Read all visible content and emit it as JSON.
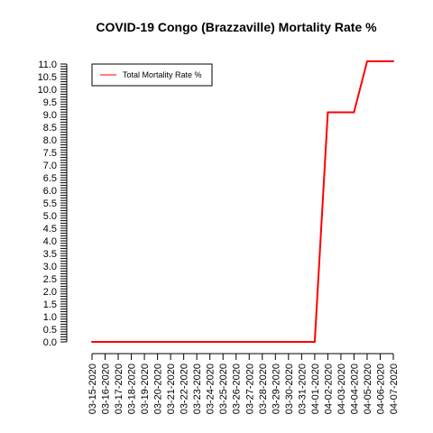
{
  "chart_data": {
    "type": "line",
    "title": "COVID-19 Congo (Brazzaville) Mortality Rate %",
    "xlabel": "",
    "ylabel": "",
    "ylim": [
      0,
      11
    ],
    "grid": false,
    "legend_position": "top-left",
    "x": [
      "03-15-2020",
      "03-16-2020",
      "03-17-2020",
      "03-18-2020",
      "03-19-2020",
      "03-20-2020",
      "03-21-2020",
      "03-22-2020",
      "03-23-2020",
      "03-24-2020",
      "03-25-2020",
      "03-26-2020",
      "03-27-2020",
      "03-28-2020",
      "03-29-2020",
      "03-30-2020",
      "03-31-2020",
      "04-01-2020",
      "04-02-2020",
      "04-03-2020",
      "04-04-2020",
      "04-05-2020",
      "04-06-2020",
      "04-07-2020"
    ],
    "y_ticks": [
      "0.0",
      "0.5",
      "1.0",
      "1.5",
      "2.0",
      "2.5",
      "3.0",
      "3.5",
      "4.0",
      "4.5",
      "5.0",
      "5.5",
      "6.0",
      "6.5",
      "7.0",
      "7.5",
      "8.0",
      "8.5",
      "9.0",
      "9.5",
      "10.0",
      "10.5",
      "11.0"
    ],
    "series": [
      {
        "name": "Total Mortality Rate %",
        "color": "#ff0000",
        "values": [
          0,
          0,
          0,
          0,
          0,
          0,
          0,
          0,
          0,
          0,
          0,
          0,
          0,
          0,
          0,
          0,
          0,
          0,
          9.09,
          9.09,
          9.09,
          11.11,
          11.11,
          11.11
        ]
      }
    ]
  }
}
